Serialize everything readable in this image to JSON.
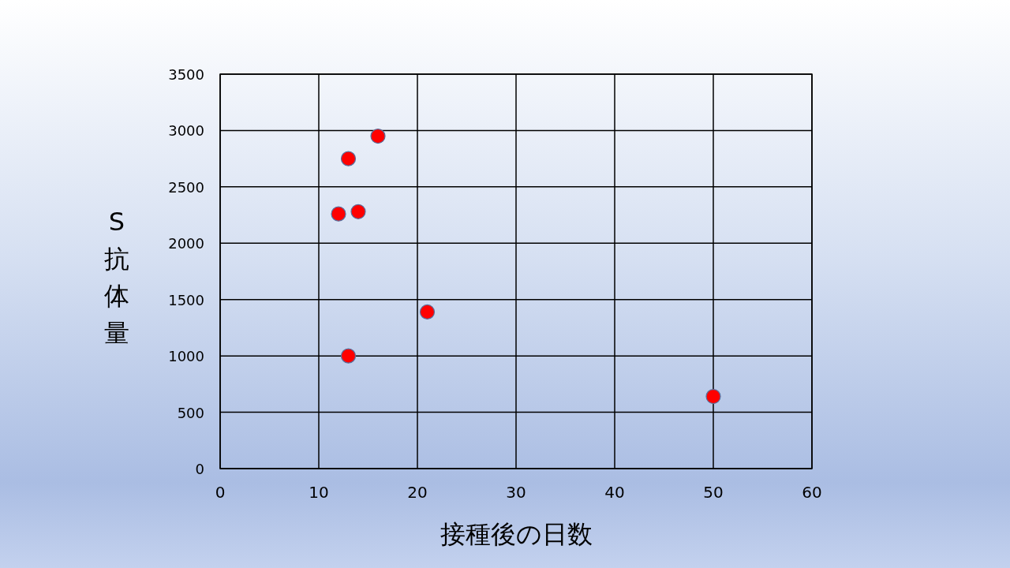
{
  "chart_data": {
    "type": "scatter",
    "xlabel": "接種後の日数",
    "ylabel": "S抗体量",
    "x": [
      12,
      13,
      16,
      14,
      21,
      13,
      50
    ],
    "values": [
      2260,
      2750,
      2950,
      2280,
      1390,
      1000,
      640
    ],
    "color": "#ff0000",
    "marker": "circle",
    "grid": true,
    "xlim": [
      0,
      60
    ],
    "xticks": [
      0,
      10,
      20,
      30,
      40,
      50,
      60
    ],
    "ylim": [
      0,
      3500
    ],
    "yticks": [
      0,
      500,
      1000,
      1500,
      2000,
      2500,
      3000,
      3500
    ]
  }
}
